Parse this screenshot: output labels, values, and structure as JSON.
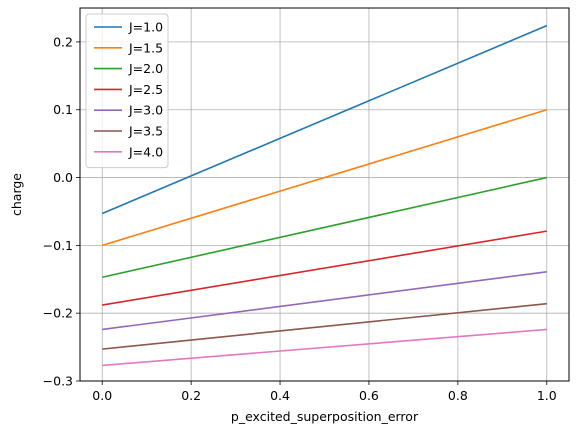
{
  "chart_data": {
    "type": "line",
    "title": "",
    "xlabel": "p_excited_superposition_error",
    "ylabel": "charge",
    "xlim": [
      -0.05,
      1.05
    ],
    "ylim": [
      -0.3,
      0.25
    ],
    "xticks": [
      0.0,
      0.2,
      0.4,
      0.6,
      0.8,
      1.0
    ],
    "xtick_labels": [
      "0.0",
      "0.2",
      "0.4",
      "0.6",
      "0.8",
      "1.0"
    ],
    "yticks": [
      -0.3,
      -0.2,
      -0.1,
      0.0,
      0.1,
      0.2
    ],
    "ytick_labels": [
      "−0.3",
      "−0.2",
      "−0.1",
      "0.0",
      "0.1",
      "0.2"
    ],
    "grid": true,
    "legend_position": "top-left",
    "x": [
      0.0,
      1.0
    ],
    "series": [
      {
        "name": "J=1.0",
        "color": "#1f77b4",
        "values": [
          -0.053,
          0.224
        ]
      },
      {
        "name": "J=1.5",
        "color": "#ff7f0e",
        "values": [
          -0.1,
          0.1
        ]
      },
      {
        "name": "J=2.0",
        "color": "#2ca02c",
        "values": [
          -0.147,
          0.0
        ]
      },
      {
        "name": "J=2.5",
        "color": "#d62728",
        "values": [
          -0.188,
          -0.079
        ]
      },
      {
        "name": "J=3.0",
        "color": "#9467bd",
        "values": [
          -0.224,
          -0.139
        ]
      },
      {
        "name": "J=3.5",
        "color": "#8c564b",
        "values": [
          -0.253,
          -0.186
        ]
      },
      {
        "name": "J=4.0",
        "color": "#e377c2",
        "values": [
          -0.277,
          -0.224
        ]
      }
    ]
  }
}
